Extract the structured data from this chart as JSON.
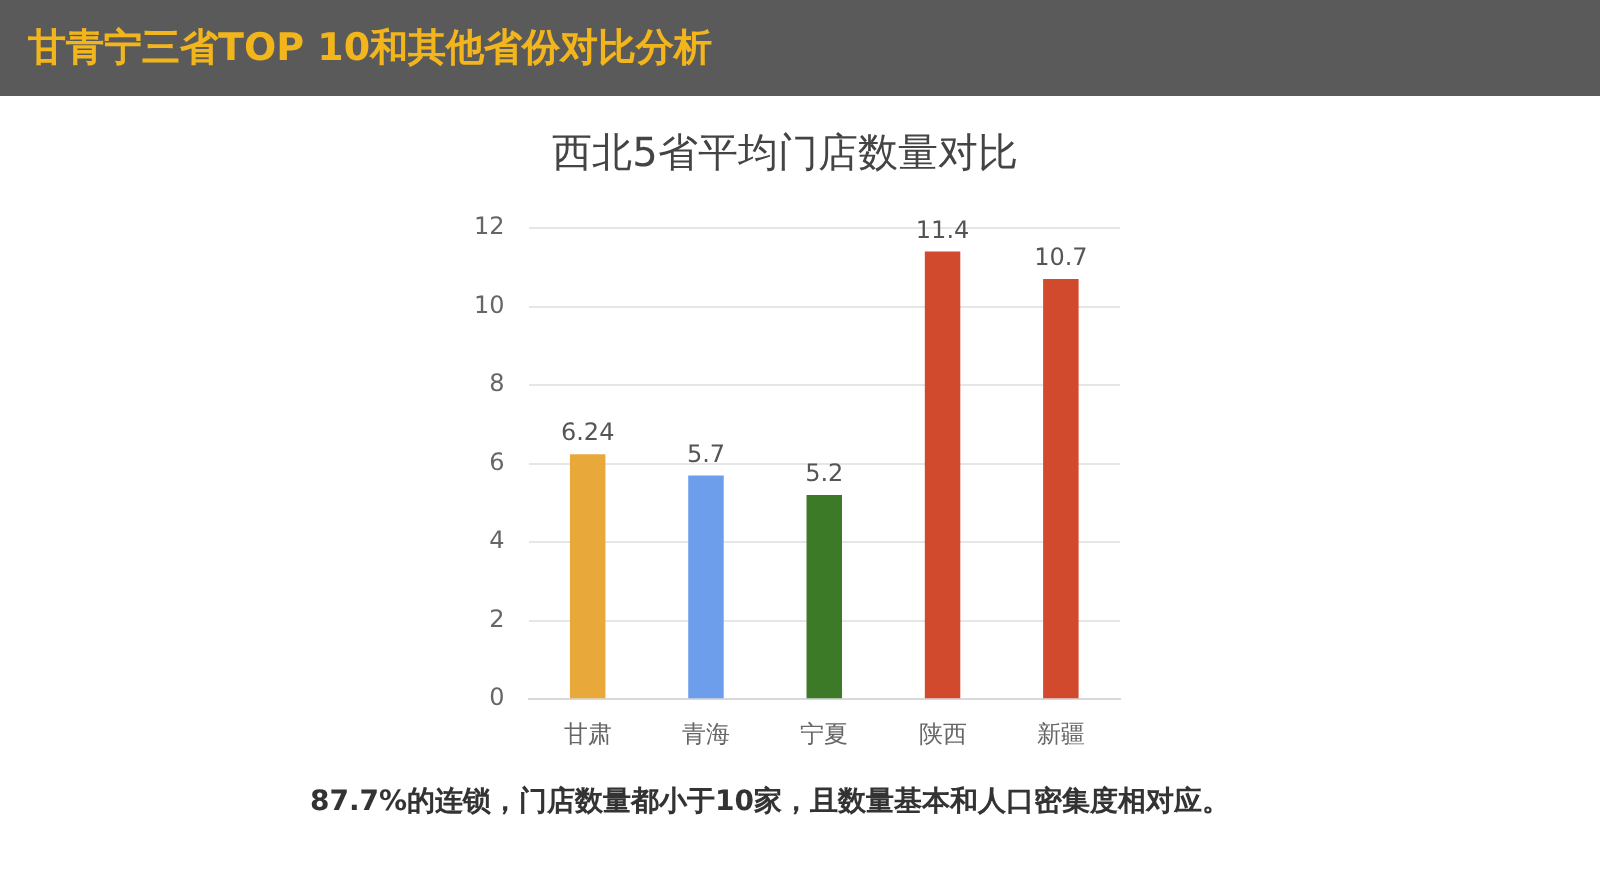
{
  "chart_data": {
    "type": "bar",
    "title": "甘青宁三省TOP 10和其他省份对比分析",
    "subtitle": "西北5省平均门店数量对比",
    "categories": [
      "甘肃",
      "青海",
      "宁夏",
      "陕西",
      "新疆"
    ],
    "values": [
      6.24,
      5.7,
      5.2,
      11.4,
      10.7
    ],
    "colors": [
      "#e8a93a",
      "#6d9eeb",
      "#3d7a28",
      "#d24a2e",
      "#d24a2e"
    ],
    "ylim": [
      0,
      12
    ],
    "yticks": [
      0,
      2,
      4,
      6,
      8,
      10,
      12
    ],
    "grid": "y",
    "data_labels": true,
    "legend": false,
    "annotations": [
      "87.7%的连锁，门店数量都小于10家，且数量基本和人口密集度相对应。"
    ]
  }
}
